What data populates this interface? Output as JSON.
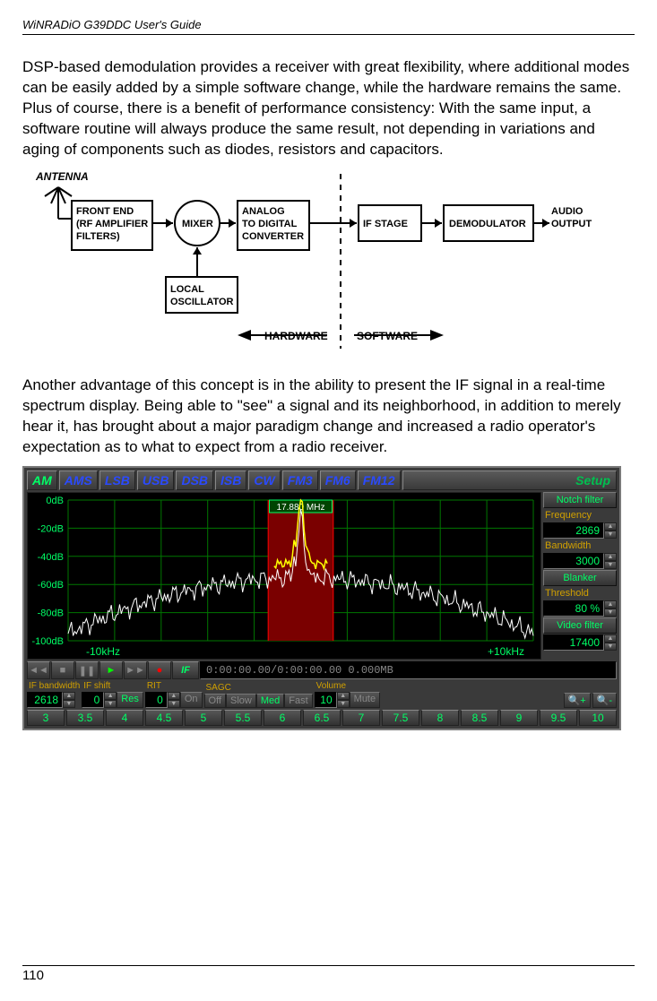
{
  "header": "WiNRADiO G39DDC User's Guide",
  "para1": "DSP-based demodulation provides a receiver with great flexibility, where additional modes can be easily added by a simple software change, while the hardware remains the same. Plus of course, there is a benefit of performance consistency: With the same input, a software routine will always produce the same result, not depending in variations and aging of components such as diodes, resistors and capacitors.",
  "para2": "Another advantage of this concept is in the ability to present the IF signal in a real-time spectrum display. Being able to \"see\" a signal and its neighborhood, in addition to merely hear it, has brought about a major paradigm change and increased a radio operator's expectation as to what to expect from a radio receiver.",
  "pagenum": "110",
  "block": {
    "antenna": "ANTENNA",
    "frontend": {
      "l1": "FRONT END",
      "l2": "(RF AMPLIFIER",
      "l3": "FILTERS)"
    },
    "mixer": "MIXER",
    "adc": {
      "l1": "ANALOG",
      "l2": "TO DIGITAL",
      "l3": "CONVERTER"
    },
    "lo": {
      "l1": "LOCAL",
      "l2": "OSCILLATOR"
    },
    "ifstage": "IF STAGE",
    "demod": "DEMODULATOR",
    "audio": {
      "l1": "AUDIO",
      "l2": "OUTPUT"
    },
    "hardware": "HARDWARE",
    "software": "SOFTWARE"
  },
  "sdr": {
    "tabs": [
      "AM",
      "AMS",
      "LSB",
      "USB",
      "DSB",
      "ISB",
      "CW",
      "FM3",
      "FM6",
      "FM12"
    ],
    "activeTab": 0,
    "setup": "Setup",
    "freq": "17.880 MHz",
    "ylabels": [
      "0dB",
      "-20dB",
      "-40dB",
      "-60dB",
      "-80dB",
      "-100dB"
    ],
    "xleft": "-10kHz",
    "xright": "+10kHz",
    "side": {
      "notch": "Notch filter",
      "freqLabel": "Frequency",
      "freqVal": "2869",
      "bwLabel": "Bandwidth",
      "bwVal": "3000",
      "blanker": "Blanker",
      "thrLabel": "Threshold",
      "thrVal": "80 %",
      "vfilter": "Video filter",
      "vfVal": "17400"
    },
    "transport": {
      "time": "0:00:00.00/0:00:00.00   0.000MB",
      "if": "IF"
    },
    "bottom": {
      "ifbwLabel": "IF bandwidth",
      "ifbwVal": "2618",
      "ifshiftLabel": "IF shift",
      "ifshiftVal": "0",
      "res": "Res",
      "ritLabel": "RIT",
      "ritVal": "0",
      "on": "On",
      "off": "Off",
      "sagcLabel": "SAGC",
      "slow": "Slow",
      "med": "Med",
      "fast": "Fast",
      "volLabel": "Volume",
      "volVal": "10",
      "mute": "Mute"
    },
    "bw": [
      "3",
      "3.5",
      "4",
      "4.5",
      "5",
      "5.5",
      "6",
      "6.5",
      "7",
      "7.5",
      "8",
      "8.5",
      "9",
      "9.5",
      "10"
    ],
    "colors": {
      "grid": "#007700",
      "trace": "#ffffff",
      "peak": "#ffff00",
      "band": "#7a0000",
      "bandLine": "#ff0000",
      "text": "#00ff66"
    }
  }
}
